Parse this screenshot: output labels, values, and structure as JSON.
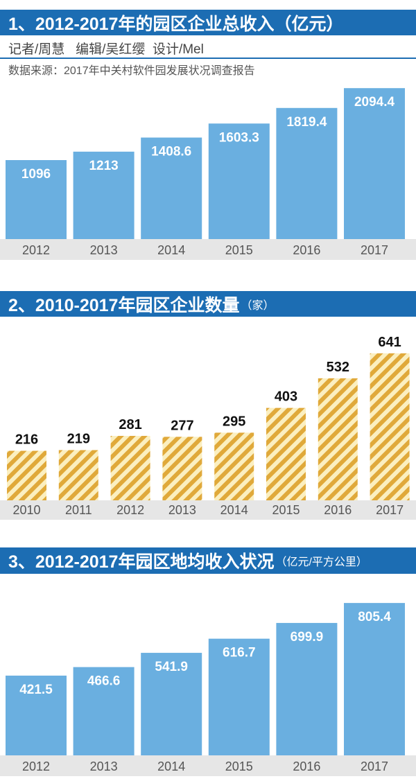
{
  "header": {
    "byline": "记者/周慧   编辑/吴红缨  设计/Mel",
    "source": "数据来源：2017年中关村软件园发展状况调查报告"
  },
  "chart_data": [
    {
      "type": "bar",
      "title": "1、2012-2017年的园区企业总收入（亿元）",
      "title_main": "1、2012-2017年的园区企业总收入（亿元）",
      "title_unit": "",
      "categories": [
        "2012",
        "2013",
        "2014",
        "2015",
        "2016",
        "2017"
      ],
      "values": [
        1096,
        1213,
        1408.6,
        1603.3,
        1819.4,
        2094.4
      ],
      "labels": [
        "1096",
        "1213",
        "1408.6",
        "1603.3",
        "1819.4",
        "2094.4"
      ],
      "color": "#6aafe0",
      "label_position": "inside-top",
      "grid": false
    },
    {
      "type": "bar",
      "title": "2、2010-2017年园区企业数量（家）",
      "title_main": "2、2010-2017年园区企业数量",
      "title_unit": "（家）",
      "categories": [
        "2010",
        "2011",
        "2012",
        "2013",
        "2014",
        "2015",
        "2016",
        "2017"
      ],
      "values": [
        216,
        219,
        281,
        277,
        295,
        403,
        532,
        641
      ],
      "labels": [
        "216",
        "219",
        "281",
        "277",
        "295",
        "403",
        "532",
        "641"
      ],
      "color": "#e0a93a",
      "pattern": "diagonal-stripes",
      "label_position": "above",
      "grid": false
    },
    {
      "type": "bar",
      "title": "3、2012-2017年园区地均收入状况（亿元/平方公里）",
      "title_main": "3、2012-2017年园区地均收入状况",
      "title_unit": "（亿元/平方公里）",
      "categories": [
        "2012",
        "2013",
        "2014",
        "2015",
        "2016",
        "2017"
      ],
      "values": [
        421.5,
        466.6,
        541.9,
        616.7,
        699.9,
        805.4
      ],
      "labels": [
        "421.5",
        "466.6",
        "541.9",
        "616.7",
        "699.9",
        "805.4"
      ],
      "color": "#6aafe0",
      "label_position": "inside-top",
      "grid": false
    }
  ]
}
